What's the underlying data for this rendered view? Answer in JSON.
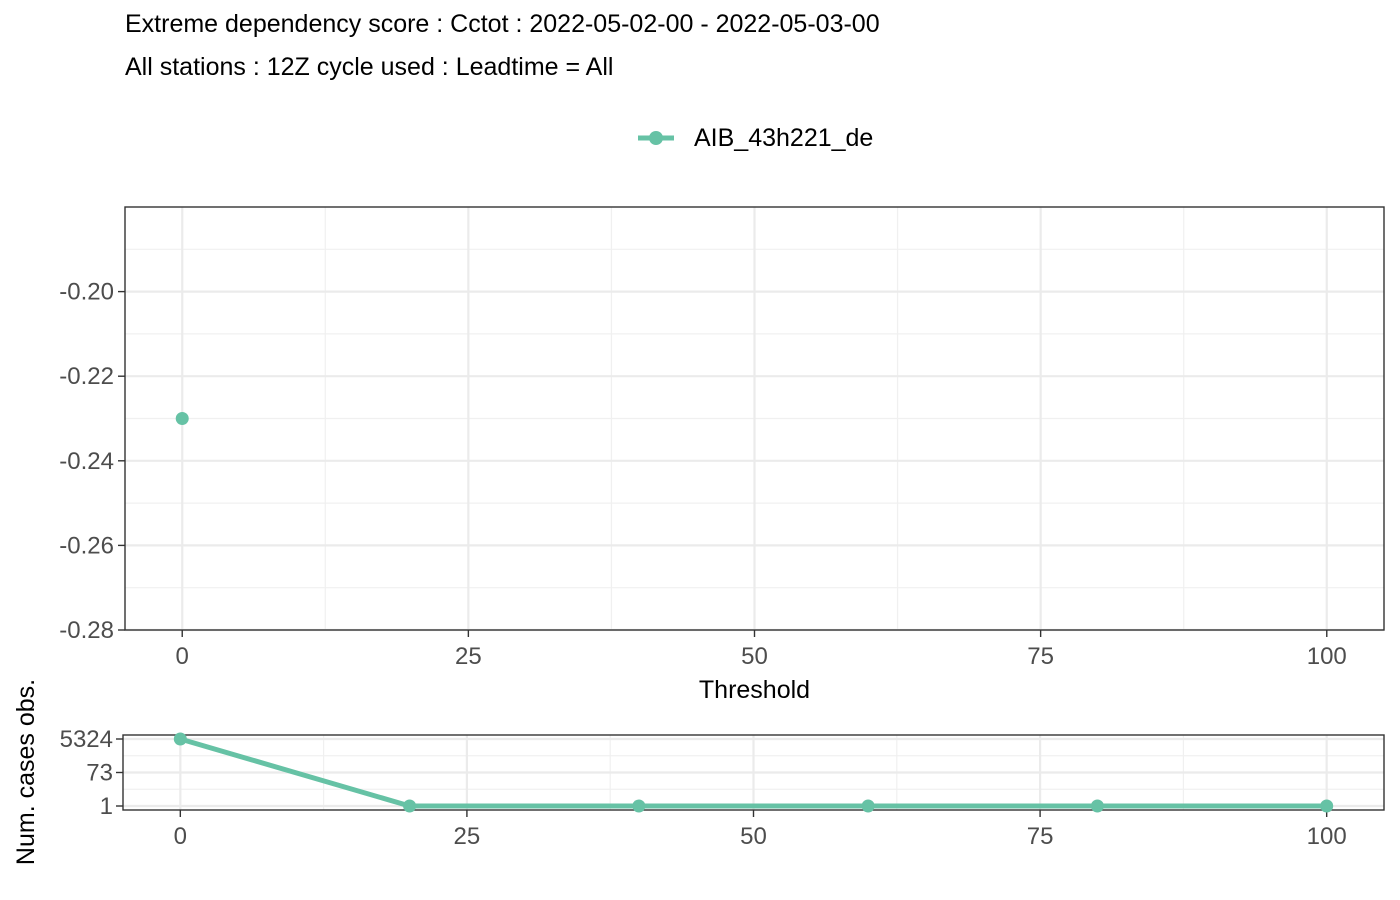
{
  "title_line1": "Extreme dependency score : Cctot : 2022-05-02-00 - 2022-05-03-00",
  "title_line2": "All stations : 12Z cycle used : Leadtime = All",
  "legend": {
    "label": "AIB_43h221_de",
    "color": "#66c2a5"
  },
  "chart_data": [
    {
      "type": "scatter",
      "xlabel": "Threshold",
      "ylabel": "",
      "xlim": [
        -5,
        105
      ],
      "ylim": [
        -0.28,
        -0.18
      ],
      "xticks": [
        0,
        25,
        50,
        75,
        100
      ],
      "xtick_labels": [
        "0",
        "25",
        "50",
        "75",
        "100"
      ],
      "yticks": [
        -0.2,
        -0.22,
        -0.24,
        -0.26,
        -0.28
      ],
      "ytick_labels": [
        "-0.20",
        "-0.22",
        "-0.24",
        "-0.26",
        "-0.28"
      ],
      "grid": true,
      "series": [
        {
          "name": "AIB_43h221_de",
          "color": "#66c2a5",
          "x": [
            0
          ],
          "y": [
            -0.23
          ]
        }
      ]
    },
    {
      "type": "line",
      "xlabel": "",
      "ylabel": "Num. cases obs.",
      "y_scale": "log",
      "xlim": [
        -5,
        105
      ],
      "xticks": [
        0,
        25,
        50,
        75,
        100
      ],
      "xtick_labels": [
        "0",
        "25",
        "50",
        "75",
        "100"
      ],
      "yticks": [
        5324,
        73,
        1
      ],
      "ytick_labels": [
        "5324",
        "73",
        "1"
      ],
      "grid": true,
      "series": [
        {
          "name": "AIB_43h221_de",
          "color": "#66c2a5",
          "x": [
            0,
            20,
            40,
            60,
            80,
            100
          ],
          "y": [
            5324,
            1,
            1,
            1,
            1,
            1
          ]
        }
      ]
    }
  ]
}
